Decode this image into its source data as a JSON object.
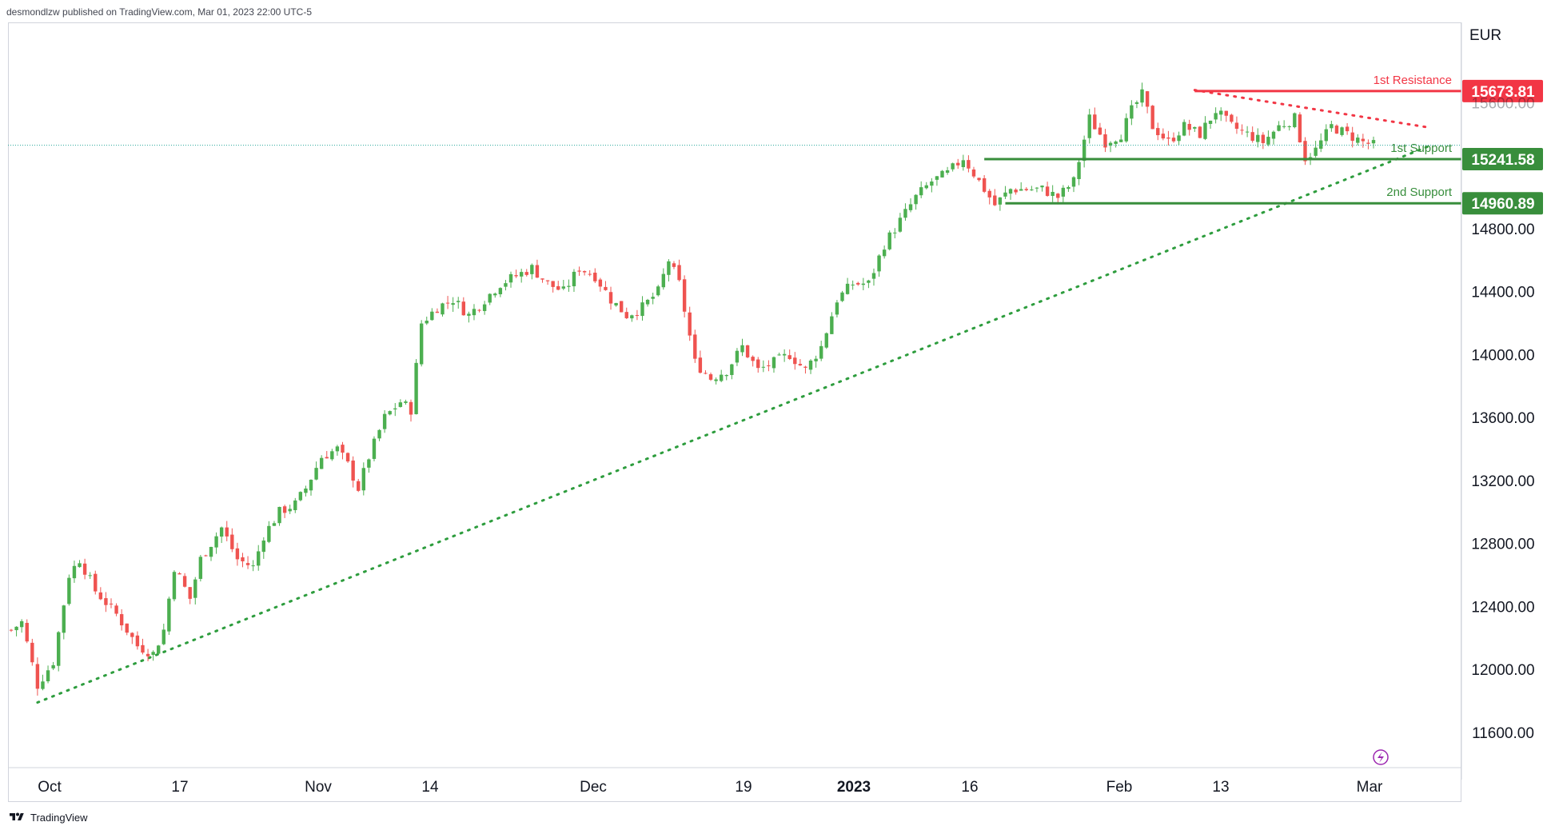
{
  "header": {
    "attribution": "desmondlzw published on TradingView.com, Mar 01, 2023 22:00 UTC-5"
  },
  "footer": {
    "brand": "TradingView",
    "logo_icon": "tradingview-logo-icon"
  },
  "colors": {
    "up": "#26a69a",
    "up_fill": "#4caf50",
    "down": "#ef5350",
    "resistance": "#f23645",
    "support": "#388e3c",
    "trend": "#2e9d3e",
    "grid": "#ffffff"
  },
  "chart_data": {
    "type": "candlestick",
    "currency": "EUR",
    "x_ticks": [
      {
        "label": "Oct",
        "bold": false
      },
      {
        "label": "17",
        "bold": false
      },
      {
        "label": "Nov",
        "bold": false
      },
      {
        "label": "14",
        "bold": false
      },
      {
        "label": "Dec",
        "bold": false
      },
      {
        "label": "19",
        "bold": false
      },
      {
        "label": "2023",
        "bold": true
      },
      {
        "label": "16",
        "bold": false
      },
      {
        "label": "Feb",
        "bold": false
      },
      {
        "label": "13",
        "bold": false
      },
      {
        "label": "Mar",
        "bold": false
      }
    ],
    "y_ticks": [
      "15600.00",
      "14800.00",
      "14400.00",
      "14000.00",
      "13600.00",
      "13200.00",
      "12800.00",
      "12400.00",
      "12000.00",
      "11600.00"
    ],
    "y_range": [
      11300,
      16110
    ],
    "levels": [
      {
        "name": "1st Resistance",
        "value": 15673.81,
        "label": "15673.81",
        "kind": "resistance"
      },
      {
        "name": "1st Support",
        "value": 15241.58,
        "label": "15241.58",
        "kind": "support"
      },
      {
        "name": "2nd Support",
        "value": 14960.89,
        "label": "14960.89",
        "kind": "support"
      }
    ],
    "last_price": 15330,
    "anchors": [
      [
        0,
        12250
      ],
      [
        2,
        12300
      ],
      [
        5,
        11900
      ],
      [
        8,
        12050
      ],
      [
        11,
        12600
      ],
      [
        13,
        12700
      ],
      [
        16,
        12500
      ],
      [
        20,
        12350
      ],
      [
        24,
        12150
      ],
      [
        27,
        12100
      ],
      [
        29,
        12250
      ],
      [
        31,
        12650
      ],
      [
        34,
        12450
      ],
      [
        36,
        12700
      ],
      [
        40,
        12900
      ],
      [
        43,
        12700
      ],
      [
        46,
        12650
      ],
      [
        48,
        12850
      ],
      [
        51,
        13000
      ],
      [
        54,
        13050
      ],
      [
        56,
        13150
      ],
      [
        59,
        13350
      ],
      [
        62,
        13400
      ],
      [
        64,
        13300
      ],
      [
        66,
        13150
      ],
      [
        68,
        13350
      ],
      [
        71,
        13600
      ],
      [
        74,
        13700
      ],
      [
        76,
        13650
      ],
      [
        78,
        14200
      ],
      [
        81,
        14300
      ],
      [
        84,
        14350
      ],
      [
        87,
        14250
      ],
      [
        90,
        14350
      ],
      [
        93,
        14450
      ],
      [
        96,
        14500
      ],
      [
        99,
        14550
      ],
      [
        102,
        14450
      ],
      [
        105,
        14400
      ],
      [
        108,
        14550
      ],
      [
        111,
        14500
      ],
      [
        114,
        14350
      ],
      [
        117,
        14250
      ],
      [
        120,
        14300
      ],
      [
        123,
        14400
      ],
      [
        125,
        14600
      ],
      [
        127,
        14450
      ],
      [
        130,
        13950
      ],
      [
        133,
        13850
      ],
      [
        136,
        13900
      ],
      [
        139,
        14050
      ],
      [
        142,
        13900
      ],
      [
        145,
        13950
      ],
      [
        148,
        14000
      ],
      [
        151,
        13900
      ],
      [
        154,
        14050
      ],
      [
        157,
        14350
      ],
      [
        160,
        14450
      ],
      [
        163,
        14450
      ],
      [
        166,
        14700
      ],
      [
        169,
        14850
      ],
      [
        172,
        15000
      ],
      [
        175,
        15100
      ],
      [
        178,
        15150
      ],
      [
        181,
        15250
      ],
      [
        184,
        15100
      ],
      [
        187,
        14950
      ],
      [
        190,
        15050
      ],
      [
        193,
        15050
      ],
      [
        196,
        15050
      ],
      [
        199,
        15000
      ],
      [
        202,
        15100
      ],
      [
        205,
        15500
      ],
      [
        208,
        15350
      ],
      [
        211,
        15400
      ],
      [
        213,
        15550
      ],
      [
        215,
        15650
      ],
      [
        217,
        15450
      ],
      [
        220,
        15350
      ],
      [
        223,
        15450
      ],
      [
        226,
        15400
      ],
      [
        229,
        15550
      ],
      [
        232,
        15450
      ],
      [
        235,
        15400
      ],
      [
        238,
        15350
      ],
      [
        241,
        15450
      ],
      [
        244,
        15500
      ],
      [
        246,
        15250
      ],
      [
        248,
        15300
      ],
      [
        251,
        15450
      ],
      [
        254,
        15400
      ],
      [
        257,
        15350
      ],
      [
        259,
        15330
      ]
    ],
    "candle_count": 260,
    "trendlines": [
      {
        "name": "ascending-support-trendline",
        "from": [
          5,
          11790
        ],
        "to": [
          270,
          15330
        ],
        "kind": "support"
      },
      {
        "name": "descending-resistance-trendline",
        "from": [
          225,
          15680
        ],
        "to": [
          270,
          15440
        ],
        "kind": "resistance"
      }
    ],
    "level_segments": [
      {
        "level": 0,
        "from": 225
      },
      {
        "level": 1,
        "from": 185
      },
      {
        "level": 2,
        "from": 189
      }
    ]
  }
}
